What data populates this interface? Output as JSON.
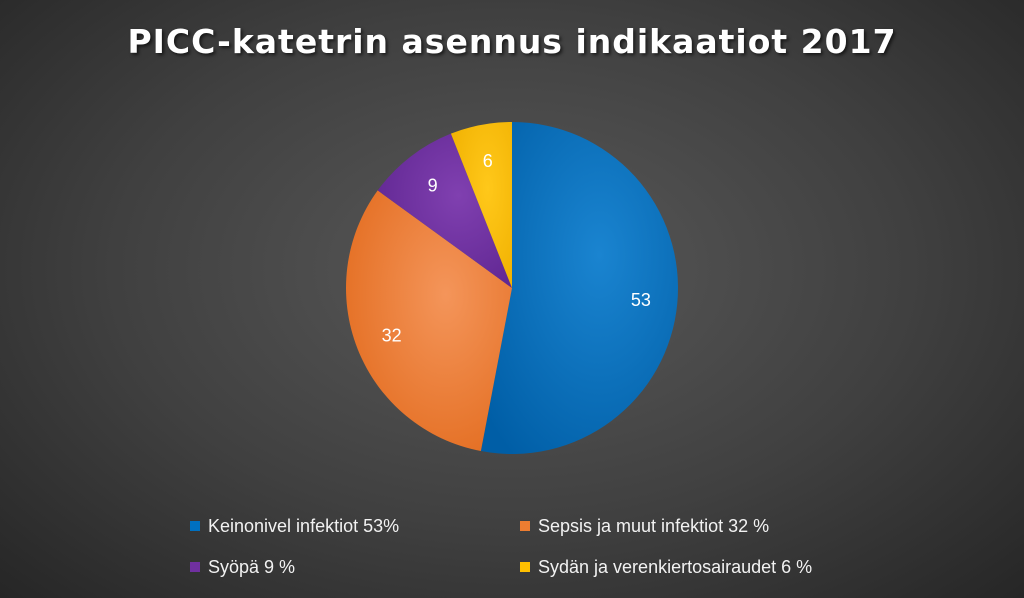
{
  "chart_data": {
    "type": "pie",
    "title": "PICC-katetrin asennus indikaatiot 2017",
    "categories": [
      "Keinonivel infektiot 53%",
      "Sepsis ja muut infektiot 32 %",
      "Syöpä 9 %",
      "Sydän ja verenkiertosairaudet 6 %"
    ],
    "values": [
      53,
      32,
      9,
      6
    ],
    "data_labels": [
      "53",
      "32",
      "9",
      "6"
    ],
    "colors": [
      "#0070C0",
      "#ED7D31",
      "#7030A0",
      "#FFC000"
    ],
    "legend_position": "bottom"
  }
}
